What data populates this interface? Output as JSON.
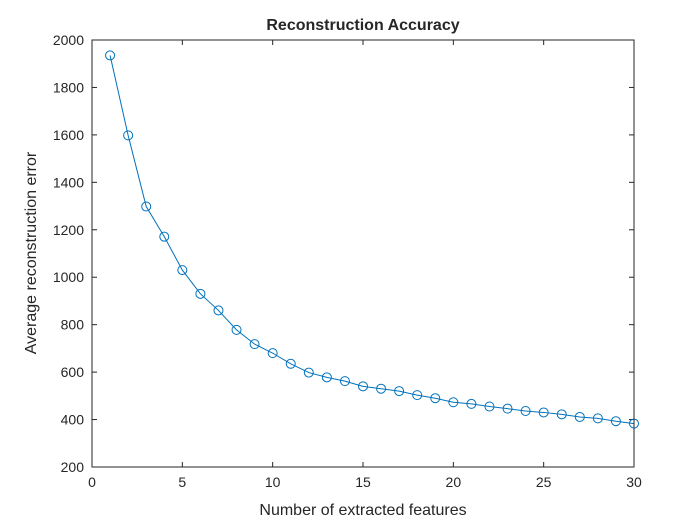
{
  "chart_data": {
    "type": "line",
    "title": "Reconstruction Accuracy",
    "xlabel": "Number of extracted features",
    "ylabel": "Average reconstruction error",
    "xlim": [
      0,
      30
    ],
    "ylim": [
      200,
      2000
    ],
    "xticks": [
      "0",
      "5",
      "10",
      "15",
      "20",
      "25",
      "30"
    ],
    "yticks": [
      "200",
      "400",
      "600",
      "800",
      "1000",
      "1200",
      "1400",
      "1600",
      "1800",
      "2000"
    ],
    "grid": false,
    "legend": "none",
    "marker": "circle",
    "color": "#0072BD",
    "series": [
      {
        "x": [
          1,
          2,
          3,
          4,
          5,
          6,
          7,
          8,
          9,
          10,
          11,
          12,
          13,
          14,
          15,
          16,
          17,
          18,
          19,
          20,
          21,
          22,
          23,
          24,
          25,
          26,
          27,
          28,
          29,
          30
        ],
        "values": [
          1935,
          1598,
          1298,
          1171,
          1030,
          930,
          860,
          778,
          718,
          680,
          635,
          598,
          578,
          562,
          540,
          530,
          520,
          503,
          490,
          473,
          466,
          455,
          446,
          436,
          430,
          422,
          411,
          405,
          393,
          383
        ]
      }
    ]
  }
}
